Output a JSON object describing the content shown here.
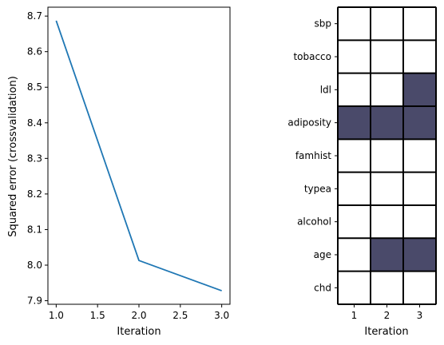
{
  "chart_data": [
    {
      "type": "line",
      "title": "",
      "xlabel": "Iteration",
      "ylabel": "Squared error (crossvalidation)",
      "x": [
        1.0,
        2.0,
        3.0
      ],
      "series": [
        {
          "values": [
            8.687,
            8.013,
            7.928
          ],
          "color": "#1f77b4"
        }
      ],
      "xlim": [
        0.9,
        3.1
      ],
      "ylim": [
        7.89,
        8.725
      ],
      "xticks": [
        "1.0",
        "1.5",
        "2.0",
        "2.5",
        "3.0"
      ],
      "yticks": [
        "7.9",
        "8.0",
        "8.1",
        "8.2",
        "8.3",
        "8.4",
        "8.5",
        "8.6",
        "8.7"
      ],
      "grid": false,
      "legend": "none"
    },
    {
      "type": "heatmap",
      "title": "",
      "xlabel": "Iteration",
      "ylabel": "",
      "columns": [
        "1",
        "2",
        "3"
      ],
      "rows": [
        "sbp",
        "tobacco",
        "ldl",
        "adiposity",
        "famhist",
        "typea",
        "alcohol",
        "age",
        "chd"
      ],
      "selected": [
        [
          0,
          0,
          0
        ],
        [
          0,
          0,
          0
        ],
        [
          0,
          0,
          1
        ],
        [
          1,
          1,
          1
        ],
        [
          0,
          0,
          0
        ],
        [
          0,
          0,
          0
        ],
        [
          0,
          0,
          0
        ],
        [
          0,
          1,
          1
        ],
        [
          0,
          0,
          0
        ]
      ],
      "selected_color": "#4a4a6a",
      "unselected_color": "#ffffff",
      "grid_color": "#000000"
    }
  ]
}
